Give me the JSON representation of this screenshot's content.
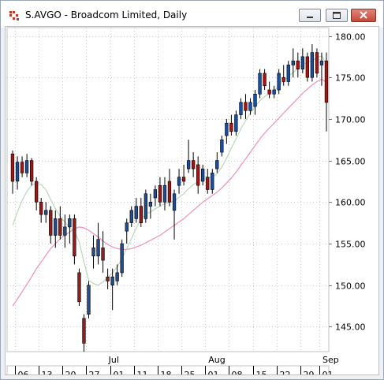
{
  "window": {
    "title": "S.AVGO - Broadcom Limited, Daily",
    "close_color": "#c64a3a"
  },
  "chart_data": {
    "type": "candlestick",
    "title": "S.AVGO - Broadcom Limited, Daily",
    "ylim": [
      142,
      181
    ],
    "y_ticks": [
      "180.00",
      "175.00",
      "170.00",
      "165.00",
      "160.00",
      "155.00",
      "150.00",
      "145.00"
    ],
    "y_tick_values": [
      180,
      175,
      170,
      165,
      160,
      155,
      150,
      145
    ],
    "month_labels": [
      {
        "label": "Jul",
        "index": 21
      },
      {
        "label": "Aug",
        "index": 42
      },
      {
        "label": "Sep",
        "index": 66
      }
    ],
    "x_tick_labels": [
      {
        "label": "06",
        "index": 1
      },
      {
        "label": "13",
        "index": 6
      },
      {
        "label": "20",
        "index": 11
      },
      {
        "label": "27",
        "index": 16
      },
      {
        "label": "01",
        "index": 21
      },
      {
        "label": "11",
        "index": 26
      },
      {
        "label": "18",
        "index": 31
      },
      {
        "label": "25",
        "index": 36
      },
      {
        "label": "01",
        "index": 41
      },
      {
        "label": "08",
        "index": 46
      },
      {
        "label": "15",
        "index": 51
      },
      {
        "label": "22",
        "index": 56
      },
      {
        "label": "29",
        "index": 61
      },
      {
        "label": "01",
        "index": 65
      }
    ],
    "colors": {
      "up": "#1f4e99",
      "down": "#a31616",
      "ma_fast": "#b9d8b9",
      "ma_slow": "#f08fb8"
    },
    "candles": [
      [
        165.8,
        166.2,
        161.0,
        162.5
      ],
      [
        162.5,
        165.5,
        161.5,
        164.8
      ],
      [
        164.8,
        165.5,
        163.0,
        163.5
      ],
      [
        163.5,
        165.8,
        163.0,
        165.0
      ],
      [
        165.0,
        165.3,
        162.0,
        162.5
      ],
      [
        162.5,
        163.0,
        159.0,
        160.0
      ],
      [
        160.0,
        160.5,
        157.5,
        158.5
      ],
      [
        158.5,
        160.0,
        157.5,
        159.0
      ],
      [
        159.0,
        159.5,
        155.0,
        156.0
      ],
      [
        156.0,
        159.0,
        154.5,
        158.0
      ],
      [
        158.0,
        159.5,
        155.5,
        156.0
      ],
      [
        156.0,
        158.5,
        154.5,
        157.0
      ],
      [
        157.0,
        158.5,
        155.0,
        158.0
      ],
      [
        158.0,
        158.5,
        152.5,
        153.5
      ],
      [
        151.5,
        152.0,
        147.5,
        148.0
      ],
      [
        146.0,
        146.5,
        142.0,
        143.0
      ],
      [
        146.5,
        150.5,
        146.0,
        150.0
      ],
      [
        153.5,
        156.0,
        152.0,
        154.5
      ],
      [
        153.5,
        157.5,
        152.5,
        155.5
      ],
      [
        154.5,
        156.5,
        151.5,
        153.0
      ],
      [
        151.0,
        152.0,
        149.5,
        150.5
      ],
      [
        150.0,
        152.0,
        147.0,
        151.0
      ],
      [
        150.5,
        152.5,
        150.0,
        151.5
      ],
      [
        151.5,
        155.5,
        151.0,
        155.0
      ],
      [
        156.5,
        158.0,
        155.0,
        157.5
      ],
      [
        157.5,
        159.5,
        157.0,
        159.0
      ],
      [
        158.0,
        160.5,
        157.5,
        159.5
      ],
      [
        159.5,
        160.5,
        157.0,
        157.5
      ],
      [
        158.0,
        161.5,
        157.5,
        161.0
      ],
      [
        159.5,
        161.0,
        158.0,
        160.0
      ],
      [
        160.5,
        162.0,
        159.5,
        161.5
      ],
      [
        162.0,
        163.0,
        159.5,
        160.0
      ],
      [
        160.0,
        163.0,
        159.0,
        162.0
      ],
      [
        162.5,
        164.0,
        159.5,
        160.0
      ],
      [
        159.0,
        161.5,
        155.5,
        161.0
      ],
      [
        162.0,
        164.0,
        161.0,
        163.0
      ],
      [
        163.0,
        164.5,
        162.0,
        162.5
      ],
      [
        164.0,
        167.5,
        163.5,
        165.0
      ],
      [
        165.0,
        166.0,
        163.0,
        164.0
      ],
      [
        164.5,
        165.5,
        161.0,
        162.0
      ],
      [
        162.5,
        164.5,
        162.0,
        164.0
      ],
      [
        163.0,
        164.0,
        161.0,
        161.5
      ],
      [
        161.5,
        164.0,
        161.0,
        163.5
      ],
      [
        164.0,
        166.0,
        163.5,
        165.0
      ],
      [
        166.0,
        168.0,
        165.5,
        167.5
      ],
      [
        168.0,
        170.0,
        167.0,
        169.5
      ],
      [
        169.5,
        170.5,
        168.0,
        168.5
      ],
      [
        168.5,
        171.0,
        168.0,
        170.5
      ],
      [
        170.5,
        172.5,
        170.0,
        172.0
      ],
      [
        172.0,
        173.0,
        170.0,
        171.0
      ],
      [
        171.0,
        172.5,
        170.5,
        172.0
      ],
      [
        171.5,
        173.5,
        170.5,
        173.0
      ],
      [
        173.0,
        176.0,
        172.5,
        175.5
      ],
      [
        175.5,
        176.0,
        173.5,
        174.0
      ],
      [
        173.5,
        174.5,
        172.5,
        173.0
      ],
      [
        173.0,
        174.0,
        172.5,
        173.5
      ],
      [
        173.5,
        176.0,
        173.0,
        175.5
      ],
      [
        175.0,
        176.5,
        174.0,
        174.5
      ],
      [
        174.5,
        177.0,
        174.0,
        176.5
      ],
      [
        176.5,
        178.5,
        175.0,
        177.0
      ],
      [
        177.0,
        178.0,
        175.0,
        176.0
      ],
      [
        176.0,
        178.5,
        175.5,
        177.5
      ],
      [
        177.5,
        178.0,
        174.5,
        175.0
      ],
      [
        175.0,
        179.0,
        174.5,
        178.0
      ],
      [
        178.0,
        178.5,
        175.0,
        175.5
      ],
      [
        176.5,
        178.0,
        174.0,
        177.0
      ],
      [
        177.0,
        178.0,
        168.5,
        172.0
      ]
    ],
    "ma_fast": [
      157.2,
      158.8,
      160.2,
      161.3,
      162.0,
      162.3,
      162.1,
      161.5,
      160.3,
      159.2,
      158.3,
      157.6,
      156.9,
      156.5,
      155.2,
      152.8,
      150.6,
      150.2,
      150.0,
      150.4,
      150.9,
      151.5,
      152.2,
      153.2,
      154.4,
      155.6,
      156.9,
      157.9,
      158.6,
      158.8,
      159.2,
      159.5,
      159.8,
      160.0,
      160.1,
      160.6,
      161.0,
      161.6,
      162.1,
      162.5,
      162.8,
      162.9,
      163.0,
      163.4,
      164.2,
      165.3,
      166.5,
      167.6,
      168.8,
      169.8,
      170.7,
      171.5,
      172.2,
      172.7,
      173.1,
      173.4,
      174.0,
      174.6,
      175.1,
      175.6,
      176.1,
      176.6,
      176.8,
      177.0,
      177.4,
      177.6,
      176.6
    ],
    "ma_slow": [
      147.5,
      148.3,
      149.2,
      150.1,
      151.0,
      152.0,
      152.8,
      153.6,
      154.4,
      155.0,
      155.6,
      156.0,
      156.4,
      156.8,
      157.0,
      156.9,
      156.6,
      156.2,
      155.8,
      155.3,
      154.9,
      154.6,
      154.4,
      154.3,
      154.3,
      154.4,
      154.6,
      154.8,
      155.1,
      155.4,
      155.7,
      156.0,
      156.4,
      156.8,
      157.2,
      157.6,
      158.0,
      158.5,
      159.0,
      159.5,
      160.0,
      160.4,
      160.8,
      161.2,
      161.7,
      162.3,
      162.9,
      163.6,
      164.4,
      165.2,
      166.0,
      166.8,
      167.6,
      168.3,
      168.9,
      169.5,
      170.1,
      170.7,
      171.3,
      171.9,
      172.5,
      173.1,
      173.6,
      174.1,
      174.5,
      174.8,
      174.4
    ]
  }
}
